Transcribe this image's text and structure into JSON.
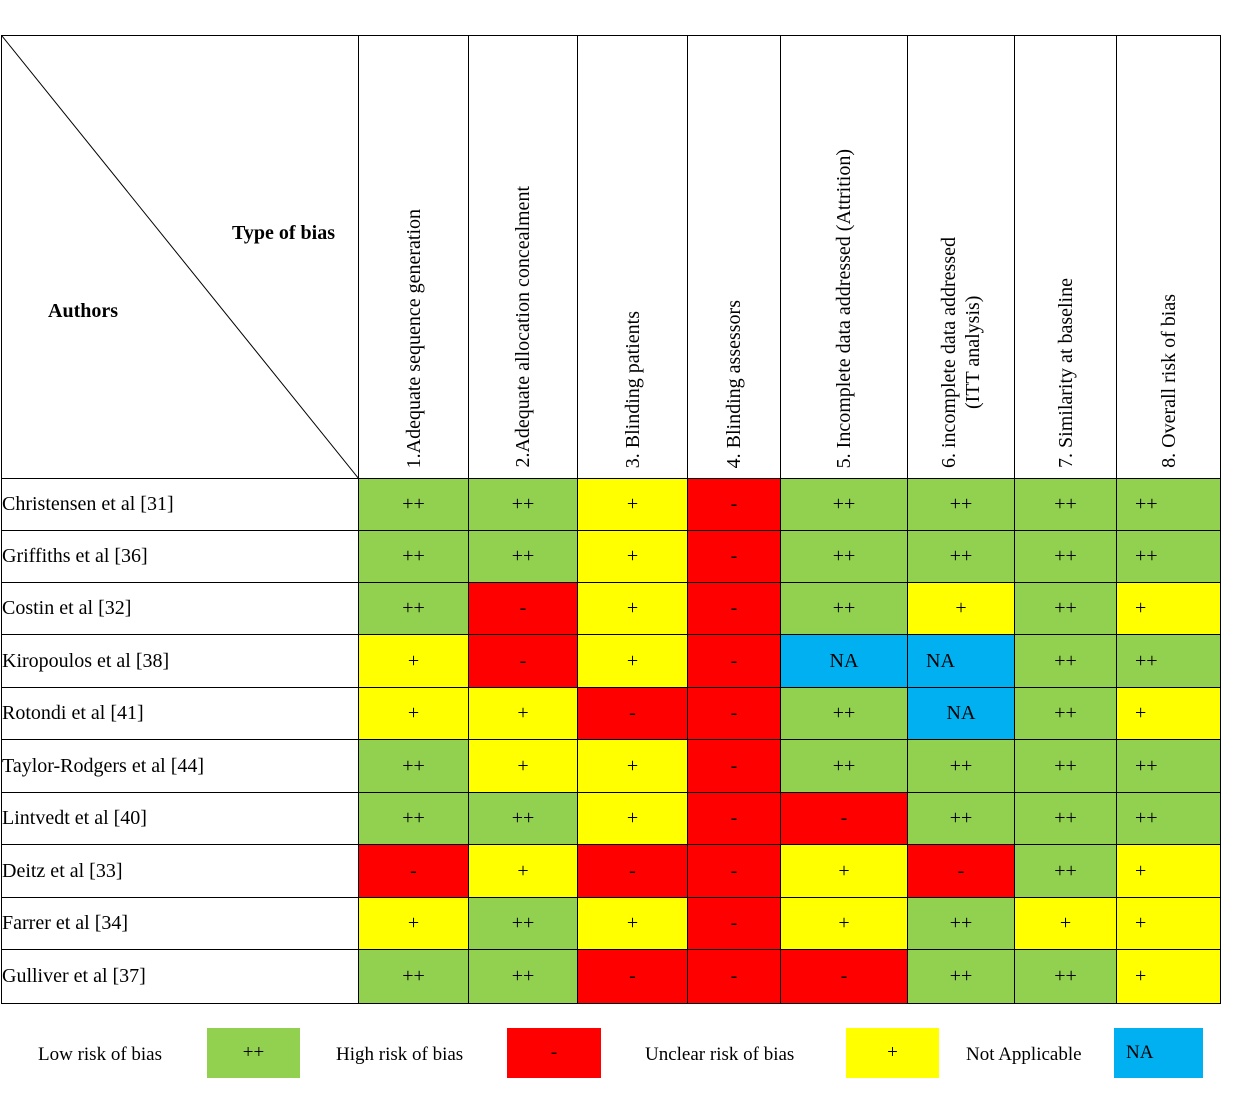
{
  "header": {
    "type_of_bias": "Type of bias",
    "authors": "Authors",
    "columns": [
      [
        "1.Adequate sequence generation"
      ],
      [
        "2.Adequate allocation concealment"
      ],
      [
        "3. Blinding patients"
      ],
      [
        "4. Blinding assessors"
      ],
      [
        "5. Incomplete data addressed (Attrition)"
      ],
      [
        "6. incomplete data addressed",
        "(ITT analysis)"
      ],
      [
        "7. Similarity at baseline"
      ],
      [
        "8. Overall risk of bias"
      ]
    ]
  },
  "colors": {
    "low": "#92d050",
    "high": "#ff0000",
    "unclear": "#ffff00",
    "na": "#00b0f0"
  },
  "rows": [
    {
      "author": "Christensen et al [31]",
      "values": [
        "++",
        "++",
        "+",
        "-",
        "++",
        "++",
        "++",
        "++"
      ]
    },
    {
      "author": "Griffiths et al [36]",
      "values": [
        "++",
        "++",
        "+",
        "-",
        "++",
        "++",
        "++",
        "++"
      ]
    },
    {
      "author": "Costin et al [32]",
      "values": [
        "++",
        "-",
        "+",
        "-",
        "++",
        "+",
        "++",
        "+"
      ]
    },
    {
      "author": "Kiropoulos et al [38]",
      "values": [
        "+",
        "-",
        "+",
        "-",
        "NA",
        "NA",
        "++",
        "++"
      ]
    },
    {
      "author": "Rotondi et al [41]",
      "values": [
        "+",
        "+",
        "-",
        "-",
        "++",
        "NA",
        "++",
        "+"
      ]
    },
    {
      "author": "Taylor-Rodgers et al [44]",
      "values": [
        "++",
        "+",
        "+",
        "-",
        "++",
        "++",
        "++",
        "++"
      ]
    },
    {
      "author": "Lintvedt et al [40]",
      "values": [
        "++",
        "++",
        "+",
        "-",
        "-",
        "++",
        "++",
        "++"
      ]
    },
    {
      "author": "Deitz et al [33]",
      "values": [
        "-",
        "+",
        "-",
        "-",
        "+",
        "-",
        "++",
        "+"
      ]
    },
    {
      "author": "Farrer et al [34]",
      "values": [
        "+",
        "++",
        "+",
        "-",
        "+",
        "++",
        "+",
        "+"
      ]
    },
    {
      "author": "Gulliver et al [37]",
      "values": [
        "++",
        "++",
        "-",
        "-",
        "-",
        "++",
        "++",
        "+"
      ]
    }
  ],
  "legend": [
    {
      "label": "Low risk of bias",
      "symbol": "++",
      "key": "low"
    },
    {
      "label": "High risk of bias",
      "symbol": "-",
      "key": "high"
    },
    {
      "label": "Unclear risk of bias",
      "symbol": "+",
      "key": "unclear"
    },
    {
      "label": "Not Applicable",
      "symbol": "NA",
      "key": "na"
    }
  ]
}
